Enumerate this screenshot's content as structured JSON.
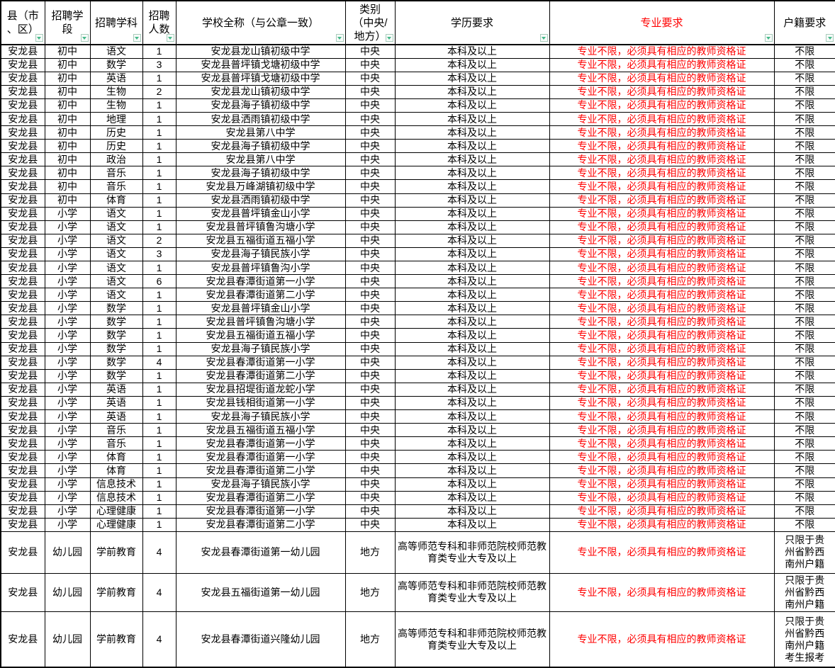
{
  "colors": {
    "major_text": "#FF0000",
    "grid": "#000000",
    "filter_arrow": "#45b98a",
    "filter_bg": "#f7fbf9"
  },
  "table": {
    "headers": [
      {
        "id": "county",
        "label": "县（市\n、区）"
      },
      {
        "id": "stage",
        "label": "招聘学\n段"
      },
      {
        "id": "subject",
        "label": "招聘学科"
      },
      {
        "id": "count",
        "label": "招聘\n人数"
      },
      {
        "id": "school",
        "label": "学校全称（与公章一致）"
      },
      {
        "id": "category",
        "label": "类别\n（中央/\n地方）"
      },
      {
        "id": "education",
        "label": "学历要求"
      },
      {
        "id": "major",
        "label": "专业要求"
      },
      {
        "id": "hukou",
        "label": "户籍要求"
      }
    ],
    "filter_icon": "filter-dropdown",
    "rows": [
      {
        "county": "安龙县",
        "stage": "初中",
        "subject": "语文",
        "count": "1",
        "school": "安龙县龙山镇初级中学",
        "category": "中央",
        "education": "本科及以上",
        "major": "专业不限，必须具有相应的教师资格证",
        "hukou": "不限"
      },
      {
        "county": "安龙县",
        "stage": "初中",
        "subject": "数学",
        "count": "3",
        "school": "安龙县普坪镇戈塘初级中学",
        "category": "中央",
        "education": "本科及以上",
        "major": "专业不限，必须具有相应的教师资格证",
        "hukou": "不限"
      },
      {
        "county": "安龙县",
        "stage": "初中",
        "subject": "英语",
        "count": "1",
        "school": "安龙县普坪镇戈塘初级中学",
        "category": "中央",
        "education": "本科及以上",
        "major": "专业不限，必须具有相应的教师资格证",
        "hukou": "不限"
      },
      {
        "county": "安龙县",
        "stage": "初中",
        "subject": "生物",
        "count": "2",
        "school": "安龙县龙山镇初级中学",
        "category": "中央",
        "education": "本科及以上",
        "major": "专业不限，必须具有相应的教师资格证",
        "hukou": "不限"
      },
      {
        "county": "安龙县",
        "stage": "初中",
        "subject": "生物",
        "count": "1",
        "school": "安龙县海子镇初级中学",
        "category": "中央",
        "education": "本科及以上",
        "major": "专业不限，必须具有相应的教师资格证",
        "hukou": "不限"
      },
      {
        "county": "安龙县",
        "stage": "初中",
        "subject": "地理",
        "count": "1",
        "school": "安龙县洒雨镇初级中学",
        "category": "中央",
        "education": "本科及以上",
        "major": "专业不限，必须具有相应的教师资格证",
        "hukou": "不限"
      },
      {
        "county": "安龙县",
        "stage": "初中",
        "subject": "历史",
        "count": "1",
        "school": "安龙县第八中学",
        "category": "中央",
        "education": "本科及以上",
        "major": "专业不限，必须具有相应的教师资格证",
        "hukou": "不限"
      },
      {
        "county": "安龙县",
        "stage": "初中",
        "subject": "历史",
        "count": "1",
        "school": "安龙县海子镇初级中学",
        "category": "中央",
        "education": "本科及以上",
        "major": "专业不限，必须具有相应的教师资格证",
        "hukou": "不限"
      },
      {
        "county": "安龙县",
        "stage": "初中",
        "subject": "政治",
        "count": "1",
        "school": "安龙县第八中学",
        "category": "中央",
        "education": "本科及以上",
        "major": "专业不限，必须具有相应的教师资格证",
        "hukou": "不限"
      },
      {
        "county": "安龙县",
        "stage": "初中",
        "subject": "音乐",
        "count": "1",
        "school": "安龙县海子镇初级中学",
        "category": "中央",
        "education": "本科及以上",
        "major": "专业不限，必须具有相应的教师资格证",
        "hukou": "不限"
      },
      {
        "county": "安龙县",
        "stage": "初中",
        "subject": "音乐",
        "count": "1",
        "school": "安龙县万峰湖镇初级中学",
        "category": "中央",
        "education": "本科及以上",
        "major": "专业不限，必须具有相应的教师资格证",
        "hukou": "不限"
      },
      {
        "county": "安龙县",
        "stage": "初中",
        "subject": "体育",
        "count": "1",
        "school": "安龙县洒雨镇初级中学",
        "category": "中央",
        "education": "本科及以上",
        "major": "专业不限，必须具有相应的教师资格证",
        "hukou": "不限"
      },
      {
        "county": "安龙县",
        "stage": "小学",
        "subject": "语文",
        "count": "1",
        "school": "安龙县普坪镇金山小学",
        "category": "中央",
        "education": "本科及以上",
        "major": "专业不限，必须具有相应的教师资格证",
        "hukou": "不限"
      },
      {
        "county": "安龙县",
        "stage": "小学",
        "subject": "语文",
        "count": "1",
        "school": "安龙县普坪镇鲁沟塘小学",
        "category": "中央",
        "education": "本科及以上",
        "major": "专业不限，必须具有相应的教师资格证",
        "hukou": "不限"
      },
      {
        "county": "安龙县",
        "stage": "小学",
        "subject": "语文",
        "count": "2",
        "school": "安龙县五福街道五福小学",
        "category": "中央",
        "education": "本科及以上",
        "major": "专业不限，必须具有相应的教师资格证",
        "hukou": "不限"
      },
      {
        "county": "安龙县",
        "stage": "小学",
        "subject": "语文",
        "count": "3",
        "school": "安龙县海子镇民族小学",
        "category": "中央",
        "education": "本科及以上",
        "major": "专业不限，必须具有相应的教师资格证",
        "hukou": "不限"
      },
      {
        "county": "安龙县",
        "stage": "小学",
        "subject": "语文",
        "count": "1",
        "school": "安龙县普坪镇鲁沟小学",
        "category": "中央",
        "education": "本科及以上",
        "major": "专业不限，必须具有相应的教师资格证",
        "hukou": "不限"
      },
      {
        "county": "安龙县",
        "stage": "小学",
        "subject": "语文",
        "count": "6",
        "school": "安龙县春潭街道第一小学",
        "category": "中央",
        "education": "本科及以上",
        "major": "专业不限，必须具有相应的教师资格证",
        "hukou": "不限"
      },
      {
        "county": "安龙县",
        "stage": "小学",
        "subject": "语文",
        "count": "1",
        "school": "安龙县春潭街道第二小学",
        "category": "中央",
        "education": "本科及以上",
        "major": "专业不限，必须具有相应的教师资格证",
        "hukou": "不限"
      },
      {
        "county": "安龙县",
        "stage": "小学",
        "subject": "数学",
        "count": "1",
        "school": "安龙县普坪镇金山小学",
        "category": "中央",
        "education": "本科及以上",
        "major": "专业不限，必须具有相应的教师资格证",
        "hukou": "不限"
      },
      {
        "county": "安龙县",
        "stage": "小学",
        "subject": "数学",
        "count": "1",
        "school": "安龙县普坪镇鲁沟塘小学",
        "category": "中央",
        "education": "本科及以上",
        "major": "专业不限，必须具有相应的教师资格证",
        "hukou": "不限"
      },
      {
        "county": "安龙县",
        "stage": "小学",
        "subject": "数学",
        "count": "1",
        "school": "安龙县五福街道五福小学",
        "category": "中央",
        "education": "本科及以上",
        "major": "专业不限，必须具有相应的教师资格证",
        "hukou": "不限"
      },
      {
        "county": "安龙县",
        "stage": "小学",
        "subject": "数学",
        "count": "1",
        "school": "安龙县海子镇民族小学",
        "category": "中央",
        "education": "本科及以上",
        "major": "专业不限，必须具有相应的教师资格证",
        "hukou": "不限"
      },
      {
        "county": "安龙县",
        "stage": "小学",
        "subject": "数学",
        "count": "4",
        "school": "安龙县春潭街道第一小学",
        "category": "中央",
        "education": "本科及以上",
        "major": "专业不限，必须具有相应的教师资格证",
        "hukou": "不限"
      },
      {
        "county": "安龙县",
        "stage": "小学",
        "subject": "数学",
        "count": "1",
        "school": "安龙县春潭街道第二小学",
        "category": "中央",
        "education": "本科及以上",
        "major": "专业不限，必须具有相应的教师资格证",
        "hukou": "不限"
      },
      {
        "county": "安龙县",
        "stage": "小学",
        "subject": "英语",
        "count": "1",
        "school": "安龙县招堤街道龙蛇小学",
        "category": "中央",
        "education": "本科及以上",
        "major": "专业不限，必须具有相应的教师资格证",
        "hukou": "不限"
      },
      {
        "county": "安龙县",
        "stage": "小学",
        "subject": "英语",
        "count": "1",
        "school": "安龙县钱相街道第一小学",
        "category": "中央",
        "education": "本科及以上",
        "major": "专业不限，必须具有相应的教师资格证",
        "hukou": "不限"
      },
      {
        "county": "安龙县",
        "stage": "小学",
        "subject": "英语",
        "count": "1",
        "school": "安龙县海子镇民族小学",
        "category": "中央",
        "education": "本科及以上",
        "major": "专业不限，必须具有相应的教师资格证",
        "hukou": "不限"
      },
      {
        "county": "安龙县",
        "stage": "小学",
        "subject": "音乐",
        "count": "1",
        "school": "安龙县五福街道五福小学",
        "category": "中央",
        "education": "本科及以上",
        "major": "专业不限，必须具有相应的教师资格证",
        "hukou": "不限"
      },
      {
        "county": "安龙县",
        "stage": "小学",
        "subject": "音乐",
        "count": "1",
        "school": "安龙县春潭街道第一小学",
        "category": "中央",
        "education": "本科及以上",
        "major": "专业不限，必须具有相应的教师资格证",
        "hukou": "不限"
      },
      {
        "county": "安龙县",
        "stage": "小学",
        "subject": "体育",
        "count": "1",
        "school": "安龙县春潭街道第一小学",
        "category": "中央",
        "education": "本科及以上",
        "major": "专业不限，必须具有相应的教师资格证",
        "hukou": "不限"
      },
      {
        "county": "安龙县",
        "stage": "小学",
        "subject": "体育",
        "count": "1",
        "school": "安龙县春潭街道第二小学",
        "category": "中央",
        "education": "本科及以上",
        "major": "专业不限，必须具有相应的教师资格证",
        "hukou": "不限"
      },
      {
        "county": "安龙县",
        "stage": "小学",
        "subject": "信息技术",
        "count": "1",
        "school": "安龙县海子镇民族小学",
        "category": "中央",
        "education": "本科及以上",
        "major": "专业不限，必须具有相应的教师资格证",
        "hukou": "不限"
      },
      {
        "county": "安龙县",
        "stage": "小学",
        "subject": "信息技术",
        "count": "1",
        "school": "安龙县春潭街道第二小学",
        "category": "中央",
        "education": "本科及以上",
        "major": "专业不限，必须具有相应的教师资格证",
        "hukou": "不限"
      },
      {
        "county": "安龙县",
        "stage": "小学",
        "subject": "心理健康",
        "count": "1",
        "school": "安龙县春潭街道第一小学",
        "category": "中央",
        "education": "本科及以上",
        "major": "专业不限，必须具有相应的教师资格证",
        "hukou": "不限"
      },
      {
        "county": "安龙县",
        "stage": "小学",
        "subject": "心理健康",
        "count": "1",
        "school": "安龙县春潭街道第二小学",
        "category": "中央",
        "education": "本科及以上",
        "major": "专业不限，必须具有相应的教师资格证",
        "hukou": "不限"
      },
      {
        "county": "安龙县",
        "stage": "幼儿园",
        "subject": "学前教育",
        "count": "4",
        "school": "安龙县春潭街道第一幼儿园",
        "category": "地方",
        "education": "高等师范专科和非师范院校师范教育类专业大专及以上",
        "major": "专业不限，必须具有相应的教师资格证",
        "hukou": "只限于贵州省黔西南州户籍"
      },
      {
        "county": "安龙县",
        "stage": "幼儿园",
        "subject": "学前教育",
        "count": "4",
        "school": "安龙县五福街道第一幼儿园",
        "category": "地方",
        "education": "高等师范专科和非师范院校师范教育类专业大专及以上",
        "major": "专业不限，必须具有相应的教师资格证",
        "hukou": "只限于贵州省黔西南州户籍"
      },
      {
        "county": "安龙县",
        "stage": "幼儿园",
        "subject": "学前教育",
        "count": "4",
        "school": "安龙县春潭街道兴隆幼儿园",
        "category": "地方",
        "education": "高等师范专科和非师范院校师范教育类专业大专及以上",
        "major": "专业不限，必须具有相应的教师资格证",
        "hukou": "只限于贵州省黔西南州户籍考生报考"
      }
    ]
  }
}
